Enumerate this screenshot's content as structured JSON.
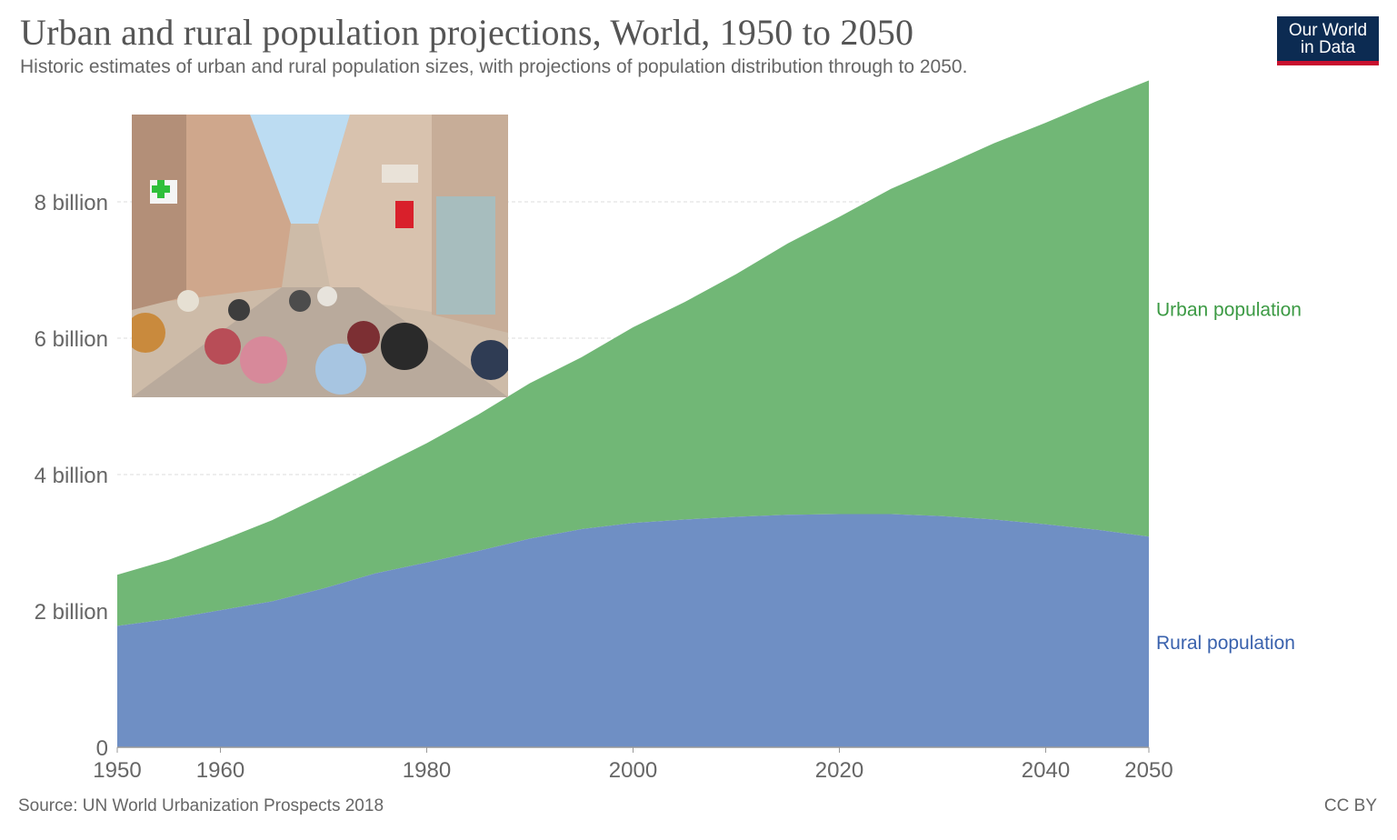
{
  "header": {
    "title": "Urban and rural population projections, World, 1950 to 2050",
    "subtitle": "Historic estimates of urban and rural population sizes, with projections of population distribution through to 2050.",
    "logo_line1": "Our World",
    "logo_line2": "in Data"
  },
  "footer": {
    "source": "Source: UN World Urbanization Prospects 2018",
    "license": "CC BY"
  },
  "colors": {
    "urban": "#71b776",
    "rural": "#6f8fc4",
    "urban_label": "#3c9a44",
    "rural_label": "#3a62ad",
    "logo_bg": "#0c2b52",
    "logo_accent": "#c8102e"
  },
  "chart_data": {
    "type": "area",
    "stacked": true,
    "xlim": [
      1950,
      2050
    ],
    "ylim": [
      0,
      9800000000
    ],
    "grid": true,
    "x_ticks": [
      {
        "value": 1950,
        "label": "1950"
      },
      {
        "value": 1960,
        "label": "1960"
      },
      {
        "value": 1980,
        "label": "1980"
      },
      {
        "value": 2000,
        "label": "2000"
      },
      {
        "value": 2020,
        "label": "2020"
      },
      {
        "value": 2040,
        "label": "2040"
      },
      {
        "value": 2050,
        "label": "2050"
      }
    ],
    "y_ticks": [
      {
        "value": 0,
        "label": "0"
      },
      {
        "value": 2000000000,
        "label": "2 billion"
      },
      {
        "value": 4000000000,
        "label": "4 billion"
      },
      {
        "value": 6000000000,
        "label": "6 billion"
      },
      {
        "value": 8000000000,
        "label": "8 billion"
      }
    ],
    "x": [
      1950,
      1955,
      1960,
      1965,
      1970,
      1975,
      1980,
      1985,
      1990,
      1995,
      2000,
      2005,
      2010,
      2015,
      2020,
      2025,
      2030,
      2035,
      2040,
      2045,
      2050
    ],
    "series": [
      {
        "name": "Rural population",
        "values": [
          1780000000,
          1880000000,
          2010000000,
          2140000000,
          2330000000,
          2550000000,
          2710000000,
          2880000000,
          3060000000,
          3200000000,
          3290000000,
          3340000000,
          3380000000,
          3410000000,
          3420000000,
          3420000000,
          3390000000,
          3340000000,
          3270000000,
          3190000000,
          3090000000
        ]
      },
      {
        "name": "Urban population",
        "values": [
          750000000,
          870000000,
          1020000000,
          1190000000,
          1370000000,
          1530000000,
          1750000000,
          2000000000,
          2280000000,
          2520000000,
          2870000000,
          3190000000,
          3560000000,
          3980000000,
          4360000000,
          4770000000,
          5130000000,
          5520000000,
          5890000000,
          6290000000,
          6690000000
        ]
      }
    ]
  }
}
